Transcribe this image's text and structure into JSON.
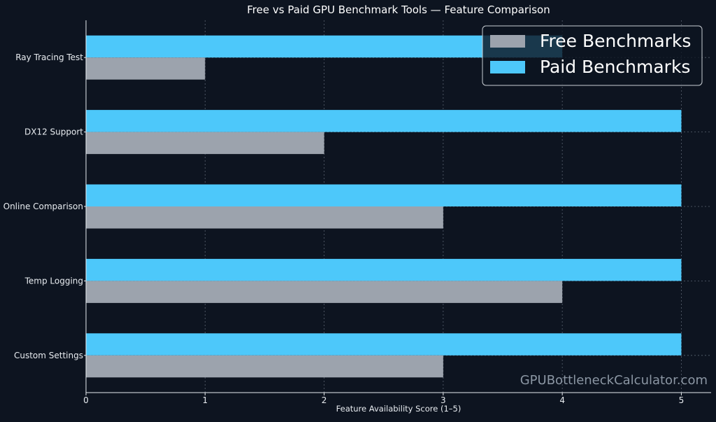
{
  "chart_data": {
    "type": "bar",
    "orientation": "horizontal",
    "title": "Free vs Paid GPU Benchmark Tools — Feature Comparison",
    "xlabel": "Feature Availability Score (1–5)",
    "ylabel": "",
    "categories": [
      "Ray Tracing Test",
      "DX12 Support",
      "Online Comparison",
      "Temp Logging",
      "Custom Settings"
    ],
    "series": [
      {
        "name": "Free Benchmarks",
        "color": "#9ca3ad",
        "values": [
          1,
          2,
          3,
          4,
          3
        ]
      },
      {
        "name": "Paid Benchmarks",
        "color": "#4dc8fa",
        "values": [
          4,
          5,
          5,
          5,
          5
        ]
      }
    ],
    "xlim": [
      0,
      5.25
    ],
    "xticks": [
      0,
      1,
      2,
      3,
      4,
      5
    ],
    "grid": true,
    "legend_position": "top-right",
    "background": "#0d1420",
    "watermark": "GPUBottleneckCalculator.com"
  }
}
